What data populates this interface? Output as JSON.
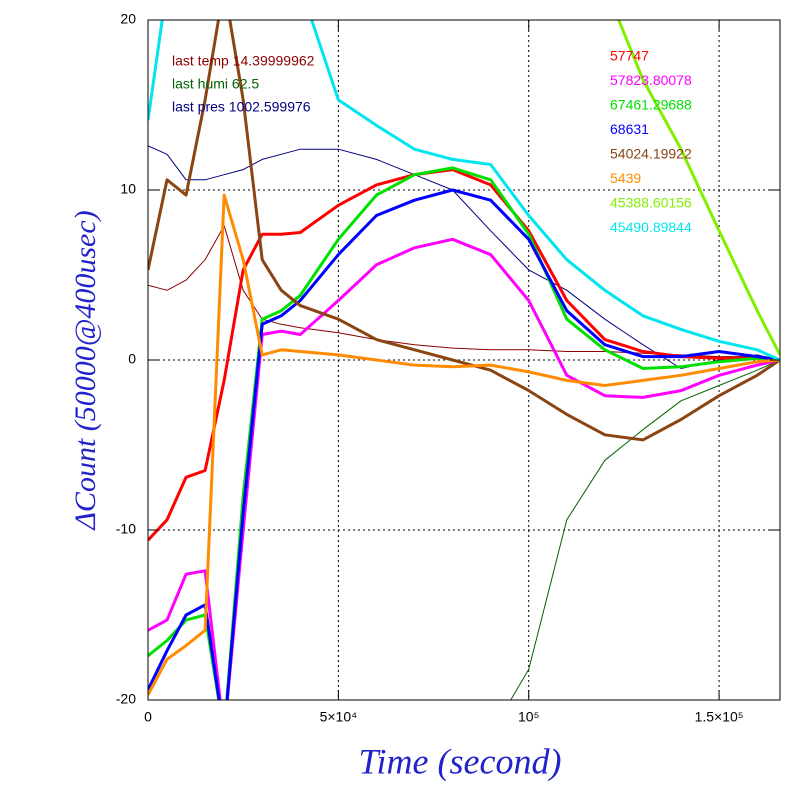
{
  "chart_data": {
    "type": "line",
    "xlabel": "Time (second)",
    "ylabel": "ΔCount (50000@400usec)",
    "x": [
      0,
      5000,
      10000,
      15000,
      20000,
      25000,
      30000,
      35000,
      40000,
      50000,
      60000,
      70000,
      80000,
      90000,
      100000,
      110000,
      120000,
      130000,
      140000,
      150000,
      160000,
      166000
    ],
    "xlim": [
      0,
      166000
    ],
    "xticks": [
      0,
      {
        "value": 50000,
        "label": "5×10⁴"
      },
      {
        "value": 100000,
        "label": "10⁵"
      },
      {
        "value": 150000,
        "label": "1.5×10⁵"
      }
    ],
    "ylim": [
      -20,
      20
    ],
    "yticks": [
      -20,
      -10,
      0,
      10,
      20
    ],
    "grid": true,
    "series": [
      {
        "name": "last temp 14.39999962",
        "color": "#8b0000",
        "line_width": 1,
        "values": [
          4.4,
          4.1,
          4.7,
          5.9,
          7.9,
          4.1,
          2.4,
          2.1,
          1.9,
          1.6,
          1.2,
          0.9,
          0.7,
          0.6,
          0.6,
          0.5,
          0.5,
          0.4,
          0.3,
          0.2,
          0.2,
          0
        ]
      },
      {
        "name": "last humi 62.5",
        "color": "#006400",
        "line_width": 1,
        "values": [
          null,
          null,
          null,
          null,
          null,
          null,
          null,
          null,
          null,
          null,
          null,
          null,
          null,
          -22,
          -18.2,
          -9.4,
          -5.9,
          -4.1,
          -2.4,
          -1.5,
          -0.6,
          0
        ]
      },
      {
        "name": "last pres 1002.599976",
        "color": "#000080",
        "line_width": 1,
        "values": [
          12.6,
          12.1,
          10.6,
          10.6,
          10.9,
          11.2,
          11.8,
          12.1,
          12.4,
          12.4,
          11.8,
          10.9,
          10,
          7.6,
          5.3,
          4.1,
          2.4,
          0.9,
          -0.5,
          0,
          0.3,
          0
        ]
      },
      {
        "name": "57747",
        "color": "#ff0000",
        "line_width": 3,
        "values": [
          -10.6,
          -9.4,
          -6.9,
          -6.5,
          -1.2,
          5.3,
          7.4,
          7.4,
          7.5,
          9.1,
          10.3,
          10.9,
          11.2,
          10.3,
          7.6,
          3.5,
          1.2,
          0.5,
          0.2,
          0.1,
          0.1,
          0
        ]
      },
      {
        "name": "57823.80078",
        "color": "#ff00ff",
        "line_width": 3,
        "values": [
          -15.9,
          -15.3,
          -12.6,
          -12.4,
          -22,
          -10,
          1.5,
          1.7,
          1.5,
          3.5,
          5.6,
          6.6,
          7.1,
          6.2,
          3.5,
          -0.9,
          -2.1,
          -2.2,
          -1.8,
          -0.9,
          -0.3,
          0
        ]
      },
      {
        "name": "67461.29688",
        "color": "#00e000",
        "line_width": 3,
        "values": [
          -17.4,
          -16.5,
          -15.3,
          -15,
          -22,
          -8,
          2.4,
          2.9,
          3.8,
          7.1,
          9.7,
          10.9,
          11.3,
          10.6,
          7.4,
          2.4,
          0.6,
          -0.5,
          -0.4,
          -0.1,
          0.1,
          0
        ]
      },
      {
        "name": "68631",
        "color": "#0000ff",
        "line_width": 3,
        "values": [
          -19.4,
          -17.1,
          -15,
          -14.4,
          -22,
          -9,
          2.1,
          2.6,
          3.5,
          6.2,
          8.5,
          9.4,
          10,
          9.4,
          7.1,
          2.9,
          0.9,
          0.2,
          0.2,
          0.5,
          0.2,
          0
        ]
      },
      {
        "name": "54024.19922",
        "color": "#8b4513",
        "line_width": 3,
        "values": [
          5.3,
          10.6,
          9.7,
          15.3,
          22,
          15.3,
          5.9,
          4.1,
          3.2,
          2.4,
          1.2,
          0.6,
          0,
          -0.6,
          -1.8,
          -3.2,
          -4.4,
          -4.7,
          -3.5,
          -2.1,
          -0.9,
          0
        ]
      },
      {
        "name": "5439",
        "color": "#ff8c00",
        "line_width": 3,
        "values": [
          -19.7,
          -17.6,
          -16.8,
          -15.9,
          9.7,
          5.9,
          0.3,
          0.6,
          0.5,
          0.3,
          0,
          -0.3,
          -0.4,
          -0.3,
          -0.7,
          -1.2,
          -1.5,
          -1.2,
          -0.9,
          -0.5,
          -0.1,
          0
        ]
      },
      {
        "name": "45388.60156",
        "color": "#80f000",
        "line_width": 3,
        "values": [
          null,
          null,
          null,
          null,
          null,
          null,
          null,
          null,
          null,
          null,
          null,
          null,
          null,
          null,
          null,
          null,
          22,
          16.5,
          12.4,
          7.6,
          2.9,
          0.3
        ]
      },
      {
        "name": "45490.89844",
        "color": "#00e5ee",
        "line_width": 3,
        "values": [
          14.1,
          22,
          22,
          22,
          22,
          22,
          22,
          22,
          22,
          15.3,
          13.8,
          12.4,
          11.8,
          11.5,
          8.5,
          5.9,
          4.1,
          2.6,
          1.8,
          1.1,
          0.6,
          0
        ]
      }
    ]
  }
}
